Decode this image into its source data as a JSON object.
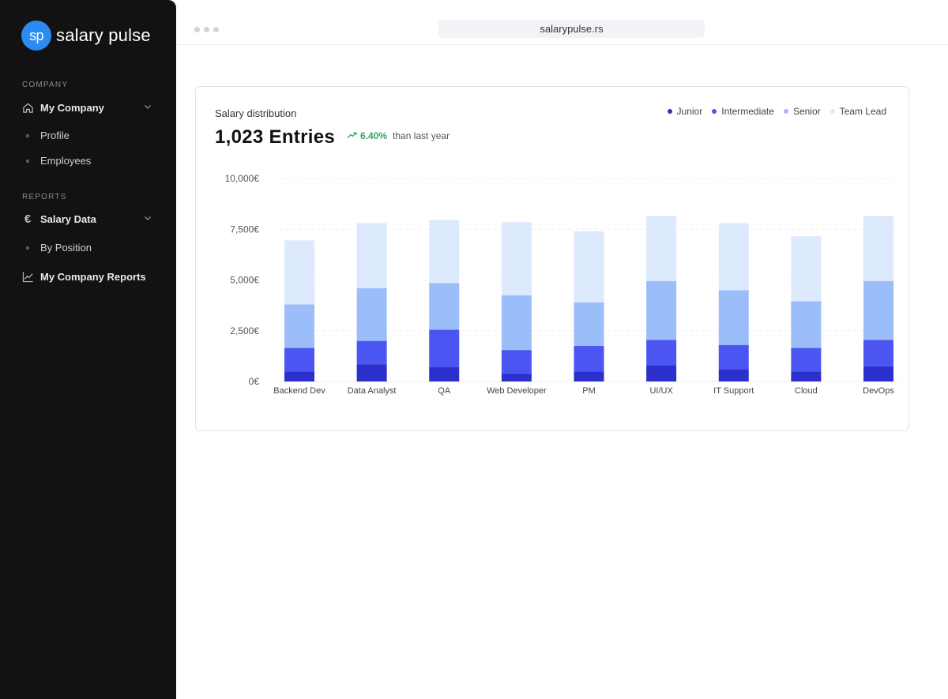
{
  "sidebar": {
    "logo": {
      "badge": "sp",
      "name": "salary pulse"
    },
    "sections": {
      "company": "COMPANY",
      "reports": "REPORTS"
    },
    "items": {
      "my_company": "My Company",
      "profile": "Profile",
      "employees": "Employees",
      "salary_data": "Salary Data",
      "by_position": "By Position",
      "company_reports": "My Company Reports"
    }
  },
  "browser": {
    "url": "salarypulse.rs"
  },
  "card": {
    "title": "Salary distribution",
    "entries": "1,023 Entries",
    "trend_value": "6.40%",
    "trend_text": "than last year"
  },
  "colors": {
    "junior": "#2b2fcc",
    "intermediate": "#4a55f2",
    "senior": "#9bbefb",
    "team_lead": "#dde9fd",
    "accent": "#2a8cf0",
    "positive": "#38a169"
  },
  "chart_data": {
    "type": "bar",
    "stacked": true,
    "categories": [
      "Backend Dev",
      "Data Analyst",
      "QA",
      "Web Developer",
      "PM",
      "UI/UX",
      "IT Support",
      "Cloud",
      "DevOps"
    ],
    "series": [
      {
        "name": "Junior",
        "values": [
          500,
          850,
          700,
          400,
          500,
          800,
          600,
          500,
          750
        ]
      },
      {
        "name": "Intermediate",
        "values": [
          1150,
          1150,
          1850,
          1150,
          1250,
          1250,
          1200,
          1150,
          1300
        ]
      },
      {
        "name": "Senior",
        "values": [
          2150,
          2600,
          2300,
          2700,
          2150,
          2900,
          2700,
          2300,
          2900
        ]
      },
      {
        "name": "Team Lead",
        "values": [
          3150,
          3200,
          3100,
          3600,
          3500,
          3200,
          3300,
          3200,
          3200
        ]
      }
    ],
    "yticks": [
      "10,000€",
      "7,500€",
      "5,000€",
      "2,500€",
      "0€"
    ],
    "ylim": [
      0,
      10000
    ],
    "legend_position": "top-right",
    "grid": true
  }
}
